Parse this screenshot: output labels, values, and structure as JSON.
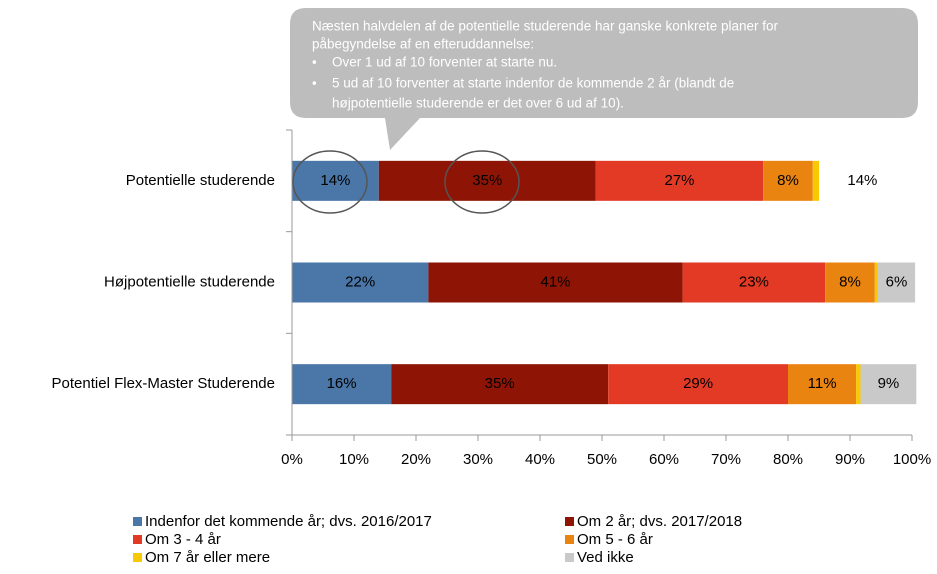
{
  "chart_data": {
    "type": "stacked-barh",
    "annotation": {
      "lines": [
        "Næsten halvdelen af de potentielle studerende har ganske konkrete planer for",
        "påbegyndelse af en efteruddannelse:",
        "Over 1 ud af 10 forventer at starte nu.",
        "5 ud af 10 forventer at starte indenfor de kommende  2 år (blandt de",
        "højpotentielle  studerende er det over 6 ud af 10)."
      ]
    },
    "categories": [
      "Potentielle  studerende",
      "Højpotentielle  studerende",
      "Potentiel Flex-Master Studerende"
    ],
    "series": [
      {
        "name": "Indenfor det kommende år; dvs. 2016/2017",
        "color": "#4a76a8",
        "label_color": "#ffffff",
        "values": [
          14,
          22,
          16
        ],
        "value_labels": [
          "14%",
          "22%",
          "16%"
        ]
      },
      {
        "name": "Om 2 år; dvs. 2017/2018",
        "color": "#8e1505",
        "label_color": "#ffffff",
        "values": [
          35,
          41,
          35
        ],
        "value_labels": [
          "35%",
          "41%",
          "35%"
        ]
      },
      {
        "name": "Om 3 - 4 år",
        "color": "#e33a26",
        "label_color": "#1a1a1a",
        "values": [
          27,
          23,
          29
        ],
        "value_labels": [
          "27%",
          "23%",
          "29%"
        ]
      },
      {
        "name": "Om 5 - 6 år",
        "color": "#ea8411",
        "label_color": "#000000",
        "values": [
          8,
          8,
          11
        ],
        "value_labels": [
          "8%",
          "8%",
          "11%"
        ]
      },
      {
        "name": "Om 7 år eller mere",
        "color": "#f8c800",
        "values": [
          1,
          0.5,
          0.7
        ]
      },
      {
        "name": "Ved ikke",
        "color": "#c9c9c9",
        "point_colors": [
          "#ffffff",
          "#c9c9c9",
          "#c9c9c9"
        ],
        "label_color": "#000000",
        "values": [
          14,
          6,
          9
        ],
        "value_labels": [
          "14%",
          "6%",
          "9%"
        ]
      }
    ],
    "xlim": [
      0,
      100
    ],
    "xticks": [
      {
        "value": 0,
        "label": "0%"
      },
      {
        "value": 10,
        "label": "10%"
      },
      {
        "value": 20,
        "label": "20%"
      },
      {
        "value": 30,
        "label": "30%"
      },
      {
        "value": 40,
        "label": "40%"
      },
      {
        "value": 50,
        "label": "50%"
      },
      {
        "value": 60,
        "label": "60%"
      },
      {
        "value": 70,
        "label": "70%"
      },
      {
        "value": 80,
        "label": "80%"
      },
      {
        "value": 90,
        "label": "90%"
      },
      {
        "value": 100,
        "label": "100%"
      }
    ]
  }
}
